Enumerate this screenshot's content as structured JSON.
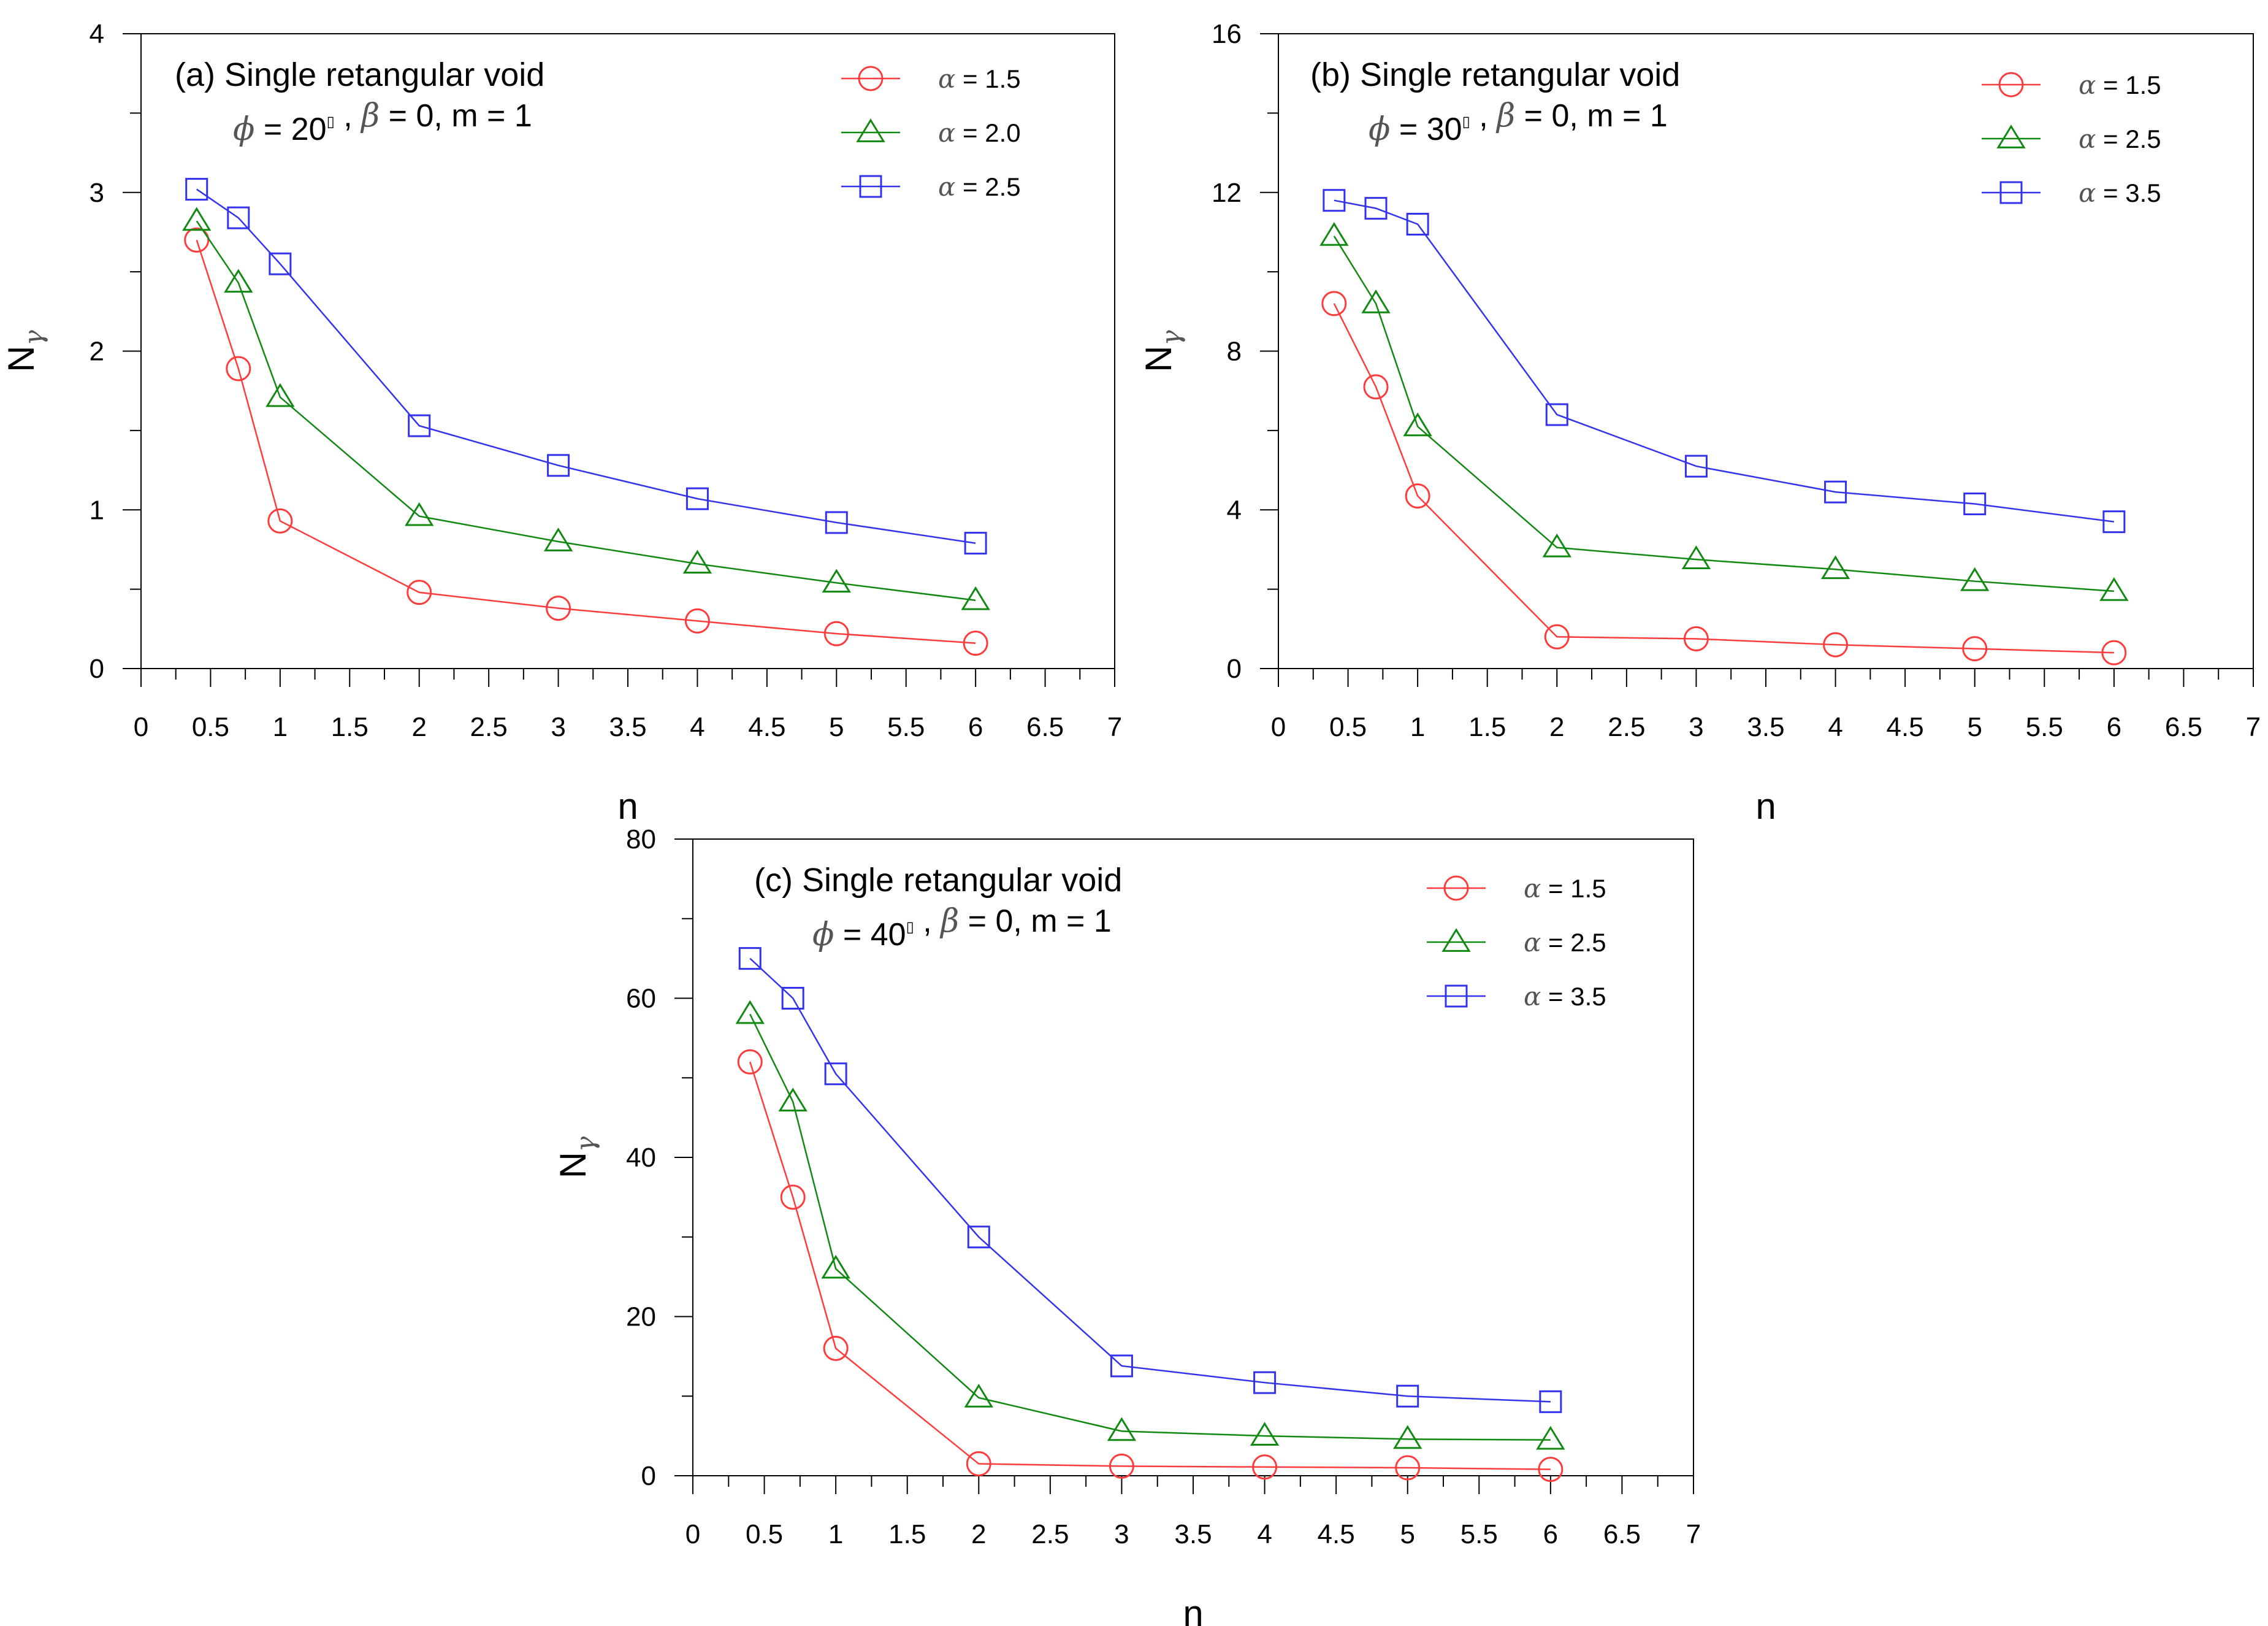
{
  "chart_data": [
    {
      "type": "line",
      "panel": "a",
      "title": "(a) Single retangular void",
      "params": {
        "phi_symbol": "ϕ",
        "phi_value": " = 20",
        "deg": "▯",
        "beta_symbol": "β",
        "rest": " = 0, m = 1"
      },
      "xlabel": "n",
      "ylabel": {
        "main": "N",
        "sub": "γ"
      },
      "xlim": [
        0,
        7
      ],
      "ylim": [
        0,
        4
      ],
      "xticks": [
        "0",
        "0.5",
        "1",
        "1.5",
        "2",
        "2.5",
        "3",
        "3.5",
        "4",
        "4.5",
        "5",
        "5.5",
        "6",
        "6.5",
        "7"
      ],
      "yticks": [
        "0",
        "1",
        "2",
        "3",
        "4"
      ],
      "x": [
        0.4,
        0.7,
        1,
        2,
        3,
        4,
        5,
        6
      ],
      "series": [
        {
          "name": "α = 1.5",
          "symbol": "α",
          "label": " = 1.5",
          "marker": "circle",
          "color": "#ff3b3b",
          "values": [
            2.7,
            1.89,
            0.93,
            0.48,
            0.38,
            0.3,
            0.22,
            0.16
          ]
        },
        {
          "name": "α = 2.0",
          "symbol": "α",
          "label": " = 2.0",
          "marker": "triangle",
          "color": "#118811",
          "values": [
            2.82,
            2.43,
            1.71,
            0.96,
            0.8,
            0.66,
            0.54,
            0.43
          ]
        },
        {
          "name": "α = 2.5",
          "symbol": "α",
          "label": " = 2.5",
          "marker": "square",
          "color": "#3333ee",
          "values": [
            3.02,
            2.84,
            2.55,
            1.53,
            1.28,
            1.07,
            0.92,
            0.79
          ]
        }
      ]
    },
    {
      "type": "line",
      "panel": "b",
      "title": "(b) Single retangular void",
      "params": {
        "phi_symbol": "ϕ",
        "phi_value": " = 30",
        "deg": "▯",
        "beta_symbol": "β",
        "rest": " = 0, m = 1"
      },
      "xlabel": "n",
      "ylabel": {
        "main": "N",
        "sub": "γ"
      },
      "xlim": [
        0,
        7
      ],
      "ylim": [
        0,
        16
      ],
      "xticks": [
        "0",
        "0.5",
        "1",
        "1.5",
        "2",
        "2.5",
        "3",
        "3.5",
        "4",
        "4.5",
        "5",
        "5.5",
        "6",
        "6.5",
        "7"
      ],
      "yticks": [
        "0",
        "4",
        "8",
        "12",
        "16"
      ],
      "x": [
        0.4,
        0.7,
        1,
        2,
        3,
        4,
        5,
        6
      ],
      "series": [
        {
          "name": "α = 1.5",
          "symbol": "α",
          "label": " = 1.5",
          "marker": "circle",
          "color": "#ff3b3b",
          "values": [
            9.2,
            7.1,
            4.35,
            0.8,
            0.75,
            0.6,
            0.5,
            0.4
          ]
        },
        {
          "name": "α = 2.5",
          "symbol": "α",
          "label": " = 2.5",
          "marker": "triangle",
          "color": "#118811",
          "values": [
            10.9,
            9.2,
            6.1,
            3.05,
            2.75,
            2.5,
            2.2,
            1.95
          ]
        },
        {
          "name": "α = 3.5",
          "symbol": "α",
          "label": " = 3.5",
          "marker": "square",
          "color": "#3333ee",
          "values": [
            11.8,
            11.6,
            11.2,
            6.4,
            5.1,
            4.45,
            4.15,
            3.7
          ]
        }
      ]
    },
    {
      "type": "line",
      "panel": "c",
      "title": "(c) Single retangular void",
      "params": {
        "phi_symbol": "ϕ",
        "phi_value": " = 40",
        "deg": "▯",
        "beta_symbol": "β",
        "rest": " = 0, m = 1"
      },
      "xlabel": "n",
      "ylabel": {
        "main": "N",
        "sub": "γ"
      },
      "xlim": [
        0,
        7
      ],
      "ylim": [
        0,
        80
      ],
      "xticks": [
        "0",
        "0.5",
        "1",
        "1.5",
        "2",
        "2.5",
        "3",
        "3.5",
        "4",
        "4.5",
        "5",
        "5.5",
        "6",
        "6.5",
        "7"
      ],
      "yticks": [
        "0",
        "20",
        "40",
        "60",
        "80"
      ],
      "x": [
        0.4,
        0.7,
        1,
        2,
        3,
        4,
        5,
        6
      ],
      "series": [
        {
          "name": "α = 1.5",
          "symbol": "α",
          "label": " = 1.5",
          "marker": "circle",
          "color": "#ff3b3b",
          "values": [
            52,
            35,
            16,
            1.5,
            1.2,
            1.1,
            1.0,
            0.8
          ]
        },
        {
          "name": "α = 2.5",
          "symbol": "α",
          "label": " = 2.5",
          "marker": "triangle",
          "color": "#118811",
          "values": [
            58,
            47,
            26,
            9.8,
            5.6,
            5.0,
            4.6,
            4.5
          ]
        },
        {
          "name": "α = 3.5",
          "symbol": "α",
          "label": " = 3.5",
          "marker": "square",
          "color": "#3333ee",
          "values": [
            65,
            60,
            50.5,
            30,
            13.8,
            11.7,
            10.0,
            9.3
          ]
        }
      ]
    }
  ]
}
